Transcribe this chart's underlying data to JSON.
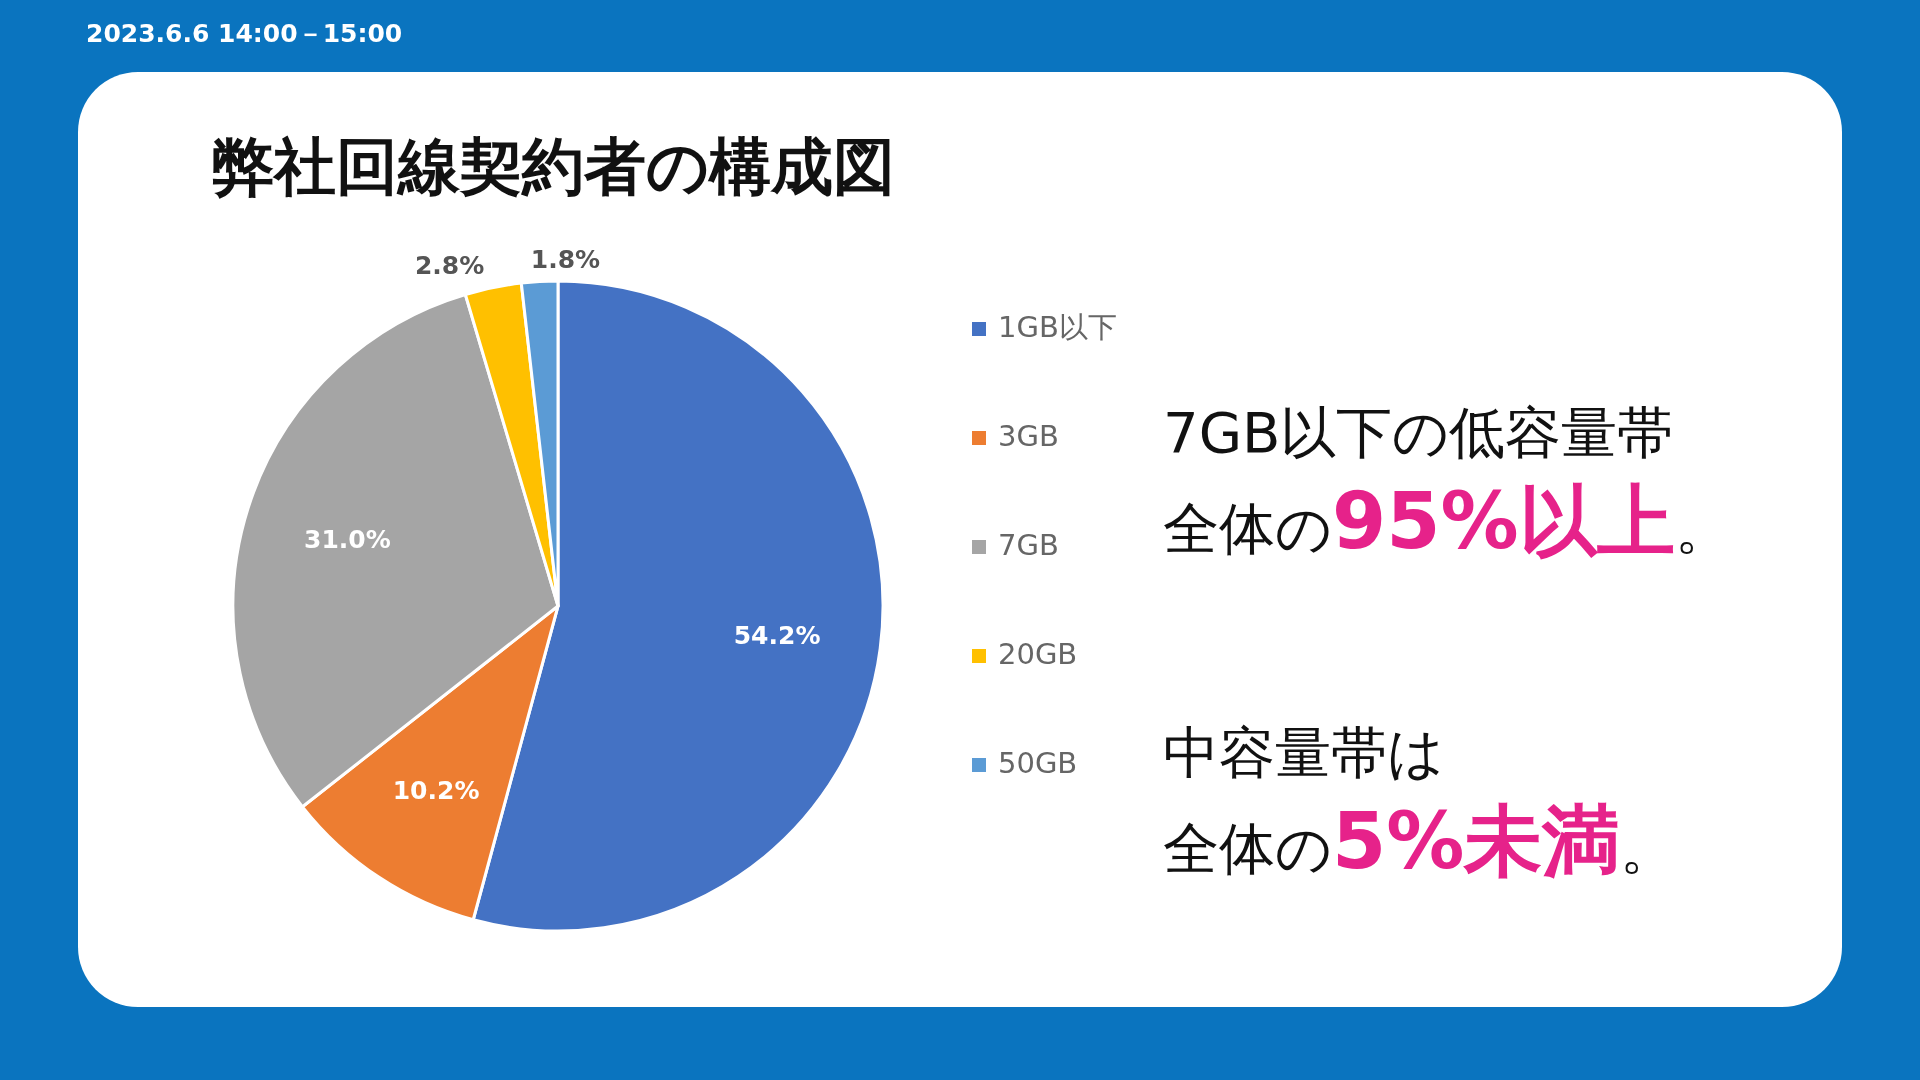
{
  "chart_data": {
    "type": "pie",
    "title": "弊社回線契約者の構成図",
    "categories": [
      "1GB以下",
      "3GB",
      "7GB",
      "20GB",
      "50GB"
    ],
    "values": [
      54.2,
      10.2,
      31.0,
      2.8,
      1.8
    ],
    "value_labels": [
      "54.2%",
      "10.2%",
      "31.0%",
      "2.8%",
      "1.8%"
    ],
    "colors": [
      "#4472c4",
      "#ed7d31",
      "#a5a5a5",
      "#ffc000",
      "#5b9bd5"
    ],
    "legend": "right",
    "annotations": [
      "2023.6.6 14:00－15:00",
      "7GB以下の低容量帯",
      "全体の**95%以上**。",
      "中容量帯は",
      "全体の**5%未満**。"
    ]
  }
}
